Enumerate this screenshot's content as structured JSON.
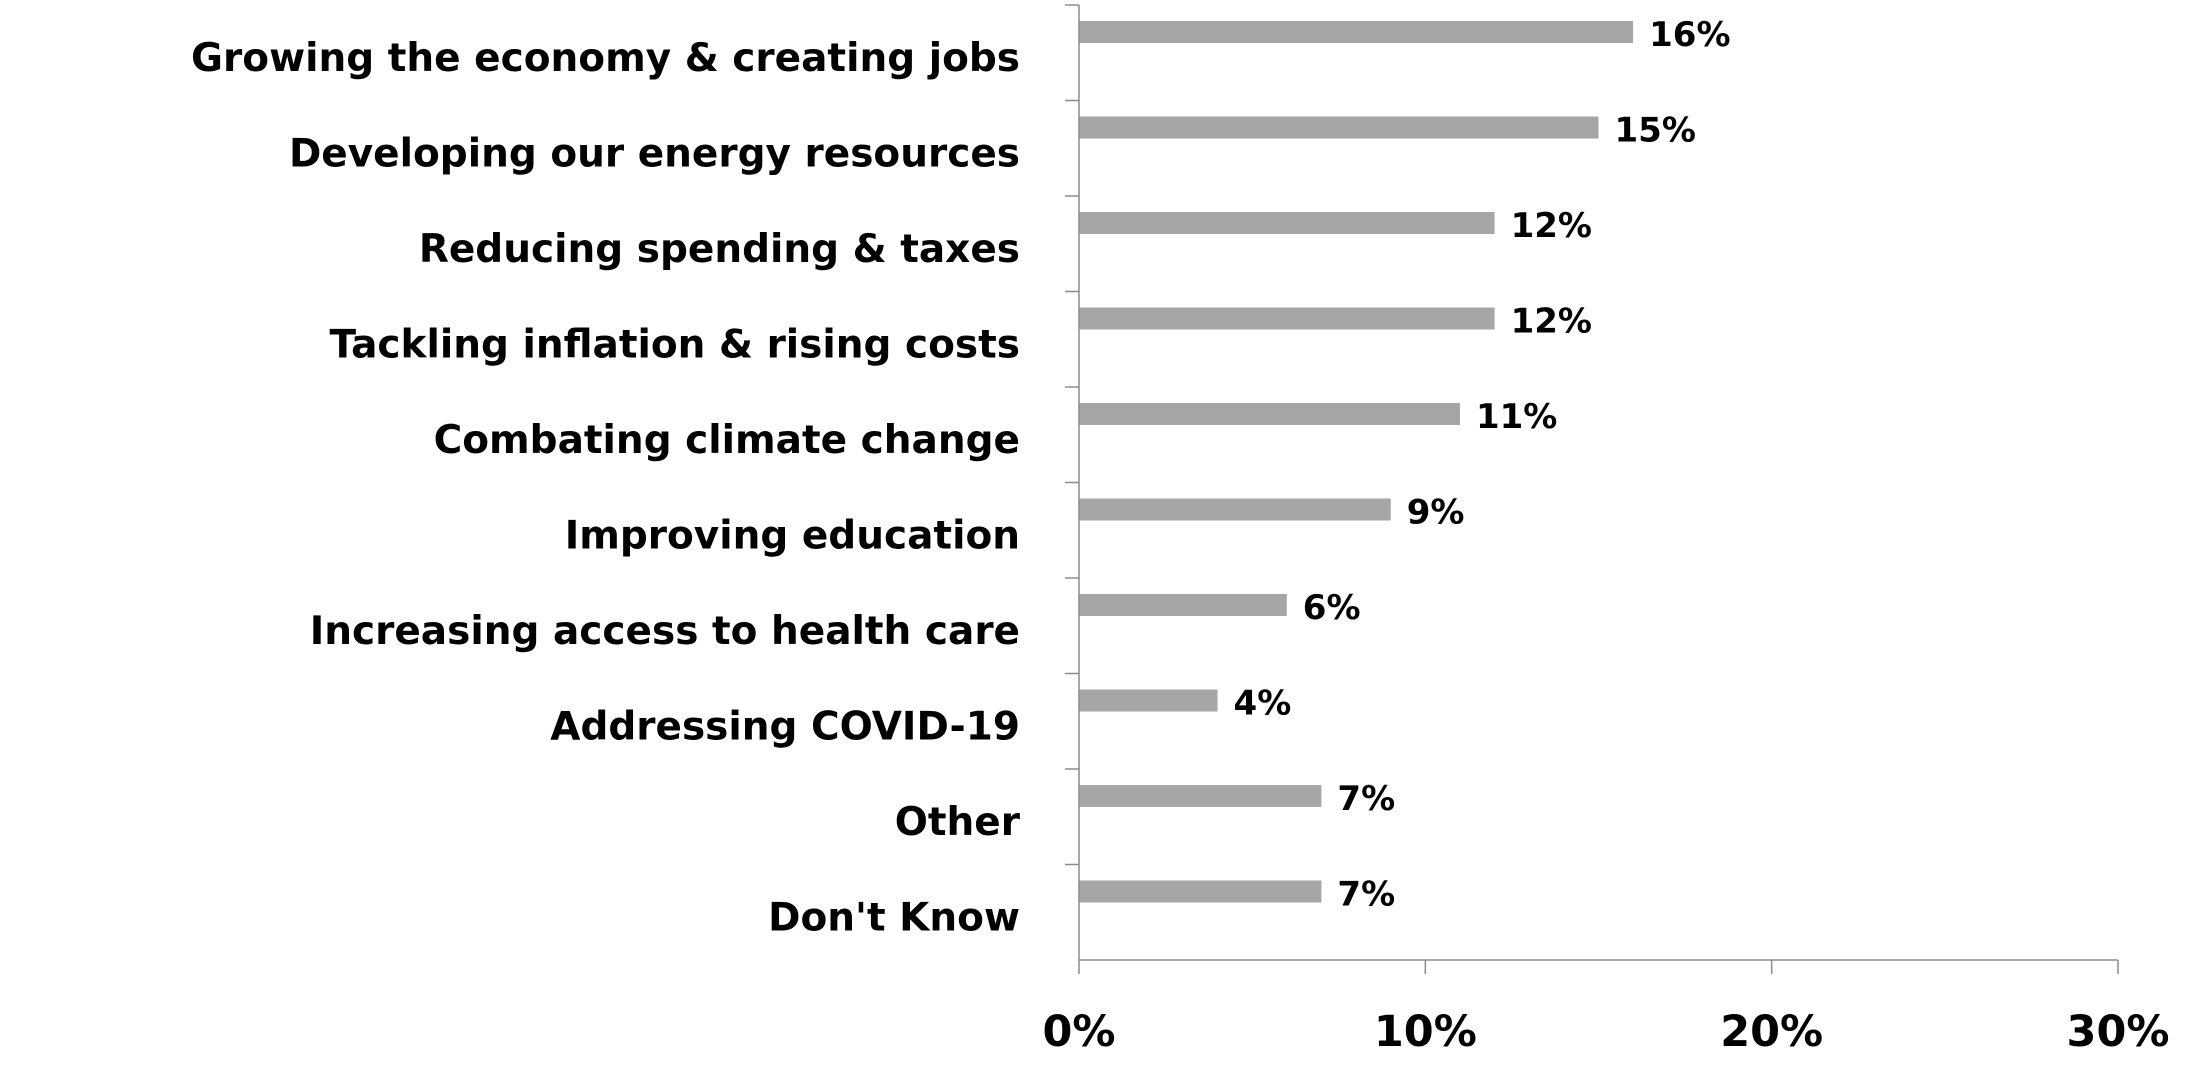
{
  "chart_data": {
    "type": "bar",
    "orientation": "horizontal",
    "categories": [
      "Growing the economy & creating jobs",
      "Developing our energy resources",
      "Reducing spending & taxes",
      "Tackling inflation & rising costs",
      "Combating climate change",
      "Improving education",
      "Increasing access to health care",
      "Addressing COVID-19",
      "Other",
      "Don't Know"
    ],
    "values": [
      16,
      15,
      12,
      12,
      11,
      9,
      6,
      4,
      7,
      7
    ],
    "value_labels": [
      "16%",
      "15%",
      "12%",
      "12%",
      "11%",
      "9%",
      "6%",
      "4%",
      "7%",
      "7%"
    ],
    "x_ticks": [
      0,
      10,
      20,
      30
    ],
    "x_tick_labels": [
      "0%",
      "10%",
      "20%",
      "30%"
    ],
    "xlim": [
      0,
      30
    ],
    "bar_color": "#a6a6a6",
    "axis_color": "#8c8c8c",
    "grid": false,
    "legend": "none"
  }
}
